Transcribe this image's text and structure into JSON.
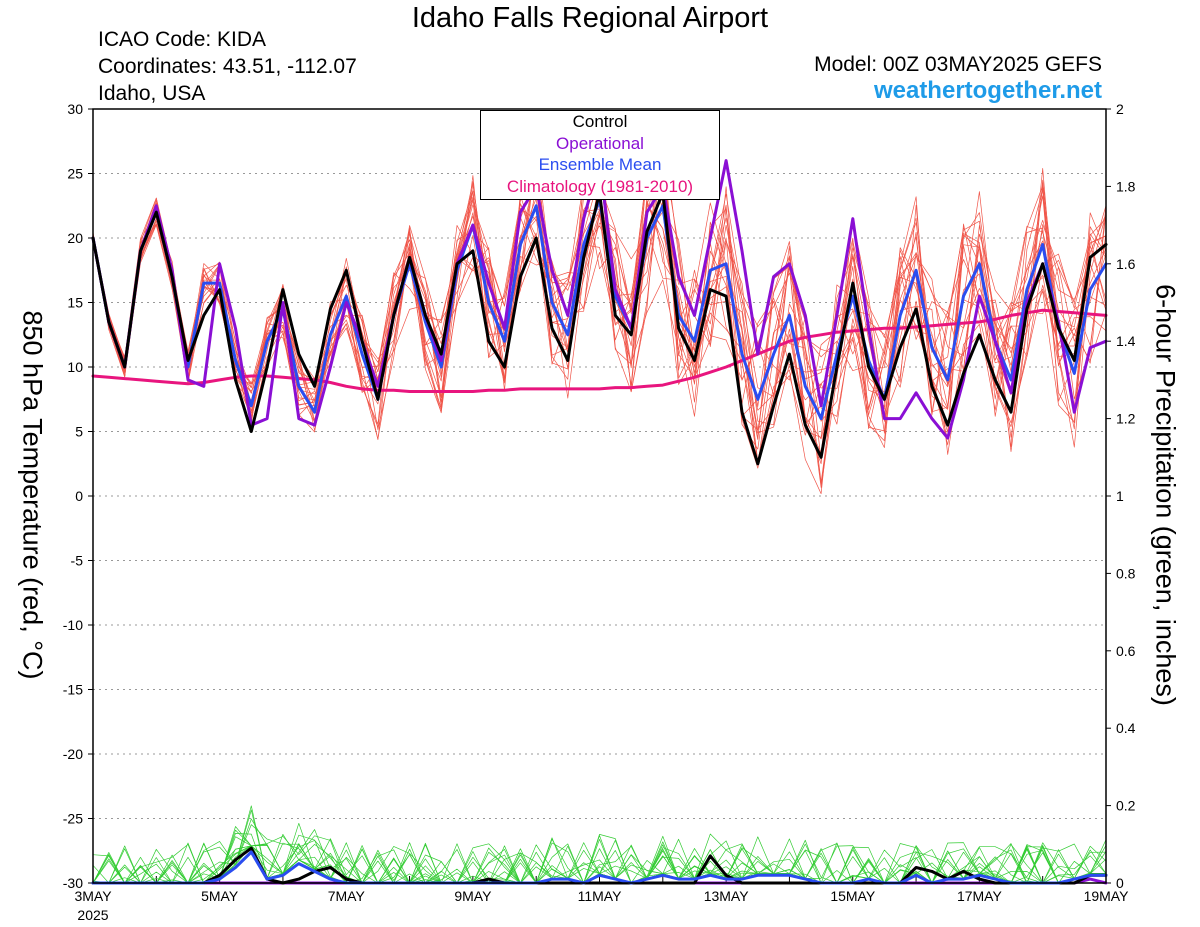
{
  "header": {
    "title": "Idaho Falls Regional Airport",
    "icao": "ICAO Code: KIDA",
    "coordinates": "Coordinates: 43.51, -112.07",
    "region": "Idaho, USA",
    "model": "Model: 00Z 03MAY2025 GEFS",
    "website": "weathertogether.net"
  },
  "chart_data": {
    "type": "line",
    "ylabel": "850 hPa Temperature (red, °C)",
    "y2label": "6-hour Precipitation (green, inches)",
    "ylim": [
      -30,
      30
    ],
    "y2lim": [
      0,
      2
    ],
    "yticks": [
      "30",
      "25",
      "20",
      "15",
      "10",
      "5",
      "0",
      "-5",
      "-10",
      "-15",
      "-20",
      "-25",
      "-30"
    ],
    "y2ticks": [
      "2",
      "1.8",
      "1.6",
      "1.4",
      "1.2",
      "1",
      "0.8",
      "0.6",
      "0.4",
      "0.2",
      "0"
    ],
    "xlim_hours": [
      0,
      384
    ],
    "step_hours": 6,
    "x_labels": [
      {
        "hour": 0,
        "label": "3MAY",
        "sub": "2025"
      },
      {
        "hour": 48,
        "label": "5MAY"
      },
      {
        "hour": 96,
        "label": "7MAY"
      },
      {
        "hour": 144,
        "label": "9MAY"
      },
      {
        "hour": 192,
        "label": "11MAY"
      },
      {
        "hour": 240,
        "label": "13MAY"
      },
      {
        "hour": 288,
        "label": "15MAY"
      },
      {
        "hour": 336,
        "label": "17MAY"
      },
      {
        "hour": 384,
        "label": "19MAY"
      }
    ],
    "grid": "dotted horizontal",
    "legend": {
      "placement": "top-center",
      "entries": [
        {
          "label": "Control",
          "color": "#000000"
        },
        {
          "label": "Operational",
          "color": "#8a0fd4"
        },
        {
          "label": "Ensemble Mean",
          "color": "#2a4df0"
        },
        {
          "label": "Climatology (1981-2010)",
          "color": "#e8157e"
        }
      ]
    },
    "colors": {
      "member_temp": "#f0564a",
      "member_precip": "#33cc33",
      "control": "#000000",
      "operational": "#8a0fd4",
      "mean": "#2a4df0",
      "climatology": "#e8157e"
    },
    "temperature": {
      "control": [
        20,
        13.5,
        10,
        19,
        22,
        17,
        10.5,
        14,
        16,
        9,
        5,
        10,
        16,
        11,
        8.5,
        14.5,
        17.5,
        12,
        7.5,
        14,
        18.5,
        14,
        11,
        18,
        19,
        12,
        10,
        17,
        20,
        13,
        10.5,
        18.5,
        23.5,
        14,
        12.5,
        20.5,
        23.5,
        13,
        10.5,
        16,
        15.5,
        6.5,
        2.5,
        7,
        11,
        5.5,
        3,
        10,
        16.5,
        10,
        7.5,
        11.5,
        14.5,
        8.5,
        5.5,
        9.5,
        12.5,
        9,
        6.5,
        14.5,
        18,
        13,
        10.5,
        18.5,
        19.5
      ],
      "operational": [
        20,
        13.5,
        10,
        19,
        22.5,
        17.5,
        9,
        8.5,
        18,
        13,
        5.5,
        6,
        15,
        6,
        5.5,
        10,
        15,
        12,
        8.5,
        14,
        18.5,
        14,
        10.5,
        18,
        21,
        16.5,
        13,
        22,
        24,
        17.5,
        14,
        21.5,
        26,
        16,
        13,
        22,
        24,
        17,
        14,
        20,
        26,
        19,
        11,
        17,
        18,
        14,
        7,
        14,
        21.5,
        13,
        6,
        6,
        8,
        6,
        4.5,
        9,
        15.5,
        12,
        8,
        15,
        18,
        13.5,
        6.5,
        11.5,
        12
      ],
      "mean": [
        20,
        13.5,
        10,
        19,
        22,
        17,
        10,
        16.5,
        16.5,
        10.5,
        7,
        12,
        14.5,
        8.5,
        6.5,
        12.5,
        15.5,
        11,
        7.5,
        14,
        18,
        13.5,
        10,
        17.5,
        21,
        15,
        12,
        19.5,
        22.5,
        15,
        12.5,
        19.5,
        23,
        15.5,
        13,
        20,
        22.5,
        14,
        12,
        17.5,
        18,
        11,
        7.5,
        11,
        14,
        8.5,
        6,
        11,
        15.5,
        10.5,
        7.5,
        14,
        17.5,
        11.5,
        9,
        15.5,
        18,
        12,
        9,
        16,
        19.5,
        13,
        9.5,
        16,
        18
      ]
    },
    "climatology": [
      9.3,
      9.2,
      9.1,
      9.0,
      8.9,
      8.8,
      8.7,
      8.8,
      9.0,
      9.2,
      9.3,
      9.3,
      9.2,
      9.1,
      9.0,
      8.8,
      8.5,
      8.3,
      8.2,
      8.2,
      8.1,
      8.1,
      8.1,
      8.1,
      8.1,
      8.2,
      8.2,
      8.3,
      8.3,
      8.3,
      8.3,
      8.3,
      8.3,
      8.4,
      8.4,
      8.5,
      8.6,
      8.9,
      9.2,
      9.6,
      10.0,
      10.5,
      11.0,
      11.5,
      12.0,
      12.3,
      12.5,
      12.7,
      12.8,
      12.9,
      13.0,
      13.0,
      13.1,
      13.2,
      13.3,
      13.4,
      13.5,
      13.7,
      14.0,
      14.2,
      14.4,
      14.3,
      14.2,
      14.1,
      14.0
    ],
    "precipitation": {
      "control": [
        0,
        0,
        0,
        0,
        0,
        0,
        0,
        0,
        0.02,
        0.06,
        0.09,
        0.01,
        0,
        0.01,
        0.03,
        0.04,
        0.01,
        0,
        0,
        0,
        0,
        0,
        0,
        0,
        0,
        0.01,
        0,
        0,
        0,
        0,
        0,
        0,
        0,
        0,
        0,
        0,
        0,
        0,
        0,
        0.07,
        0.02,
        0,
        0,
        0,
        0,
        0,
        0,
        0,
        0,
        0,
        0,
        0,
        0.04,
        0.03,
        0.01,
        0.03,
        0.01,
        0,
        0,
        0,
        0,
        0,
        0,
        0.02,
        0.02
      ],
      "operational": [
        0,
        0,
        0,
        0,
        0,
        0,
        0,
        0,
        0,
        0,
        0,
        0,
        0,
        0,
        0,
        0,
        0,
        0,
        0,
        0,
        0,
        0,
        0,
        0,
        0,
        0,
        0,
        0,
        0,
        0,
        0,
        0,
        0,
        0,
        0,
        0,
        0,
        0,
        0,
        0,
        0,
        0,
        0,
        0,
        0,
        0,
        0,
        0,
        0,
        0,
        0,
        0,
        0,
        0,
        0,
        0,
        0,
        0,
        0,
        0,
        0,
        0,
        0,
        0.01,
        0
      ],
      "mean": [
        0,
        0,
        0,
        0,
        0,
        0,
        0,
        0,
        0.01,
        0.04,
        0.08,
        0.01,
        0.02,
        0.05,
        0.03,
        0.01,
        0,
        0,
        0,
        0,
        0,
        0,
        0,
        0,
        0,
        0,
        0,
        0,
        0,
        0.01,
        0.01,
        0,
        0.02,
        0.01,
        0,
        0.01,
        0.02,
        0.01,
        0.01,
        0.02,
        0.01,
        0.01,
        0.02,
        0.02,
        0.02,
        0.01,
        0,
        0,
        0,
        0.01,
        0,
        0,
        0.02,
        0,
        0.01,
        0.01,
        0.02,
        0.01,
        0,
        0,
        0,
        0,
        0.01,
        0.02,
        0.02
      ]
    }
  }
}
